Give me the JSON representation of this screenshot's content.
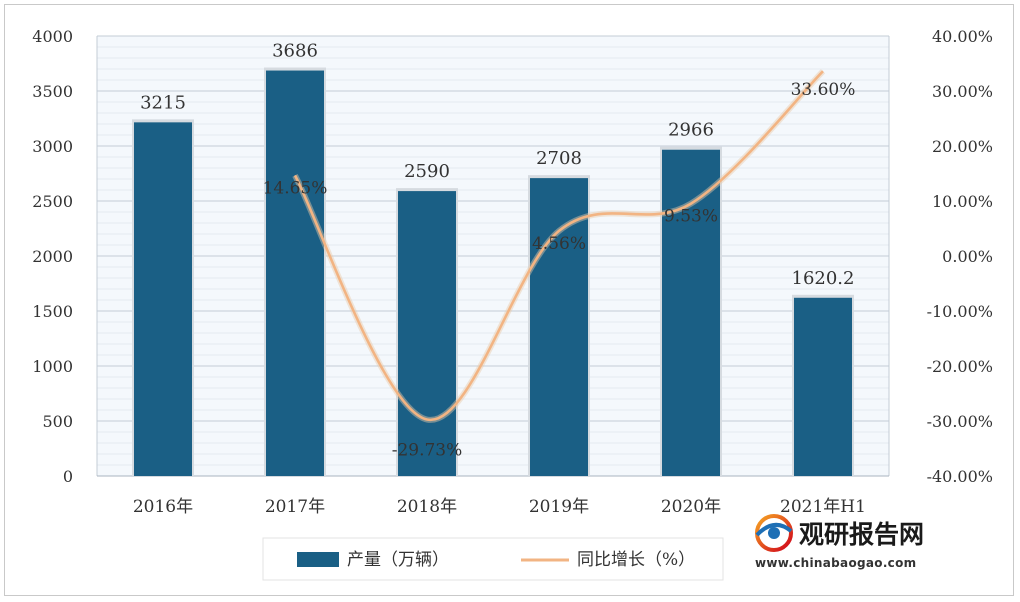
{
  "chart_data": {
    "type": "bar",
    "categories": [
      "2016年",
      "2017年",
      "2018年",
      "2019年",
      "2020年",
      "2021年H1"
    ],
    "series": [
      {
        "name": "产量（万辆）",
        "type": "bar",
        "axis": "left",
        "values": [
          3215,
          3686,
          2590,
          2708,
          2966,
          1620.2
        ],
        "labels": [
          "3215",
          "3686",
          "2590",
          "2708",
          "2966",
          "1620.2"
        ],
        "color": "#1a5f85"
      },
      {
        "name": "同比增长（%）",
        "type": "line",
        "axis": "right",
        "values": [
          null,
          14.65,
          -29.73,
          4.56,
          9.53,
          33.6
        ],
        "labels": [
          "",
          "14.65%",
          "-29.73%",
          "4.56%",
          "9.53%",
          "33.60%"
        ],
        "color": "#f2b483"
      }
    ],
    "ylim": [
      0,
      4000
    ],
    "yticks": [
      0,
      500,
      1000,
      1500,
      2000,
      2500,
      3000,
      3500,
      4000
    ],
    "ytick_labels": [
      "0",
      "500",
      "1000",
      "1500",
      "2000",
      "2500",
      "3000",
      "3500",
      "4000"
    ],
    "y2lim": [
      -40,
      40
    ],
    "y2ticks": [
      -40,
      -30,
      -20,
      -10,
      0,
      10,
      20,
      30,
      40
    ],
    "y2tick_labels": [
      "-40.00%",
      "-30.00%",
      "-20.00%",
      "-10.00%",
      "0.00%",
      "10.00%",
      "20.00%",
      "30.00%",
      "40.00%"
    ],
    "grid": true,
    "legend_position": "bottom"
  },
  "watermark": {
    "name": "观研报告网",
    "url": "www.chinabaogao.com",
    "logo_icon": "globe-logo-icon"
  }
}
